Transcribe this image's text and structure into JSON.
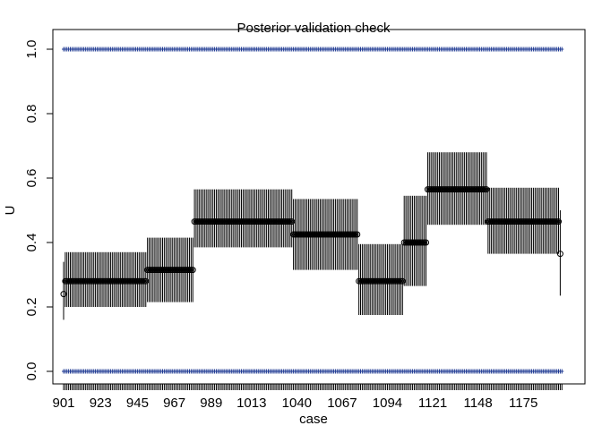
{
  "chart_data": {
    "type": "scatter",
    "title": "Posterior validation check",
    "xlabel": "case",
    "ylabel": "U",
    "xlim": [
      901,
      1200
    ],
    "ylim": [
      0,
      1
    ],
    "x_tick_labels": [
      "901",
      "923",
      "945",
      "967",
      "989",
      "1013",
      "1040",
      "1067",
      "1094",
      "1121",
      "1148",
      "1175"
    ],
    "y_tick_labels": [
      "0.0",
      "0.2",
      "0.4",
      "0.6",
      "0.8",
      "1.0"
    ],
    "y_ticks": [
      0,
      0.2,
      0.4,
      0.6,
      0.8,
      1.0
    ],
    "grid": false,
    "colors": {
      "observed_points": "#1f3a93",
      "intervals": "#000000",
      "median": "#000000"
    },
    "series": [
      {
        "kind": "observed_U",
        "values": [
          0,
          1
        ]
      }
    ],
    "segments": [
      {
        "x_start": 901,
        "x_end": 901,
        "median": 0.24,
        "lower": 0.16,
        "upper": 0.34
      },
      {
        "x_start": 902,
        "x_end": 950,
        "median": 0.28,
        "lower": 0.2,
        "upper": 0.37
      },
      {
        "x_start": 951,
        "x_end": 978,
        "median": 0.315,
        "lower": 0.215,
        "upper": 0.415
      },
      {
        "x_start": 979,
        "x_end": 1037,
        "median": 0.465,
        "lower": 0.385,
        "upper": 0.565
      },
      {
        "x_start": 1038,
        "x_end": 1076,
        "median": 0.425,
        "lower": 0.315,
        "upper": 0.535
      },
      {
        "x_start": 1077,
        "x_end": 1103,
        "median": 0.28,
        "lower": 0.175,
        "upper": 0.395
      },
      {
        "x_start": 1104,
        "x_end": 1117,
        "median": 0.4,
        "lower": 0.265,
        "upper": 0.545
      },
      {
        "x_start": 1118,
        "x_end": 1153,
        "median": 0.565,
        "lower": 0.455,
        "upper": 0.68
      },
      {
        "x_start": 1154,
        "x_end": 1196,
        "median": 0.465,
        "lower": 0.365,
        "upper": 0.57
      },
      {
        "x_start": 1197,
        "x_end": 1197,
        "median": 0.365,
        "lower": 0.235,
        "upper": 0.5
      }
    ]
  }
}
